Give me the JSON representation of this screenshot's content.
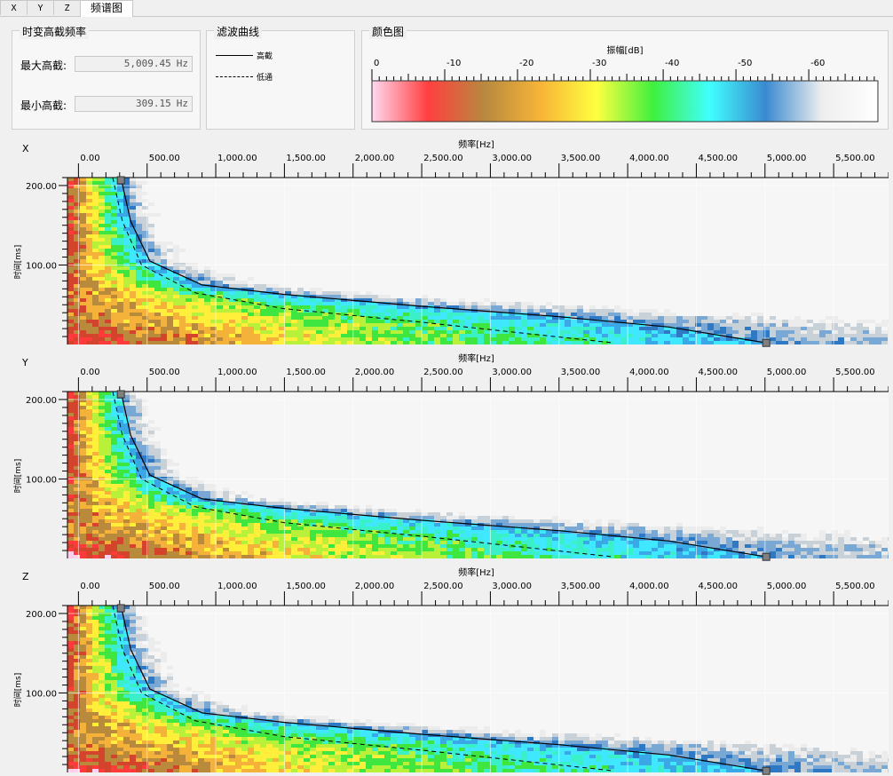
{
  "tabs": [
    {
      "label": "X",
      "active": false
    },
    {
      "label": "Y",
      "active": false
    },
    {
      "label": "Z",
      "active": false
    },
    {
      "label": "频谱图",
      "active": true
    }
  ],
  "cutoff_group": {
    "title": "时变高截频率",
    "max_label": "最大高截:",
    "max_value": "5,009.45",
    "min_label": "最小高截:",
    "min_value": "309.15",
    "unit": "Hz"
  },
  "filter_group": {
    "title": "滤波曲线",
    "items": [
      {
        "label": "高截",
        "style": "solid"
      },
      {
        "label": "低通",
        "style": "dashed"
      }
    ]
  },
  "colormap_group": {
    "title": "颜色图",
    "axis_label": "振幅[dB]",
    "ticks": [
      "0",
      "-10",
      "-20",
      "-30",
      "-40",
      "-50",
      "-60"
    ],
    "stops": [
      "#ffd8f0",
      "#ff3f3f",
      "#b7893f",
      "#f7b437",
      "#ffff40",
      "#3ff03f",
      "#40ffff",
      "#3a8ad0",
      "#eeeeee",
      "#ffffff"
    ]
  },
  "panels": [
    {
      "axis": "X",
      "xlabel": "频率[Hz]",
      "ylabel": "时间[ms]"
    },
    {
      "axis": "Y",
      "xlabel": "频率[Hz]",
      "ylabel": "时间[ms]"
    },
    {
      "axis": "Z",
      "xlabel": "频率[Hz]",
      "ylabel": "时间[ms]"
    }
  ],
  "chart_data": {
    "type": "heatmap",
    "xlabel": "频率[Hz]",
    "ylabel": "时间[ms]",
    "x_ticks": [
      "0.00",
      "500.00",
      "1,000.00",
      "1,500.00",
      "2,000.00",
      "2,500.00",
      "3,000.00",
      "3,500.00",
      "4,000.00",
      "4,500.00",
      "5,000.00",
      "5,500.00"
    ],
    "y_ticks": [
      "200.00",
      "100.00"
    ],
    "xlim": [
      -80,
      5900
    ],
    "ylim": [
      0,
      210
    ],
    "high_cut_curve": [
      [
        309,
        210
      ],
      [
        380,
        155
      ],
      [
        520,
        105
      ],
      [
        900,
        75
      ],
      [
        1500,
        63
      ],
      [
        2500,
        48
      ],
      [
        3500,
        35
      ],
      [
        4300,
        22
      ],
      [
        5009,
        2
      ]
    ],
    "lowpass_curve": [
      [
        250,
        210
      ],
      [
        320,
        155
      ],
      [
        460,
        100
      ],
      [
        850,
        65
      ],
      [
        1500,
        45
      ],
      [
        2500,
        28
      ],
      [
        3200,
        15
      ],
      [
        3900,
        2
      ]
    ]
  }
}
